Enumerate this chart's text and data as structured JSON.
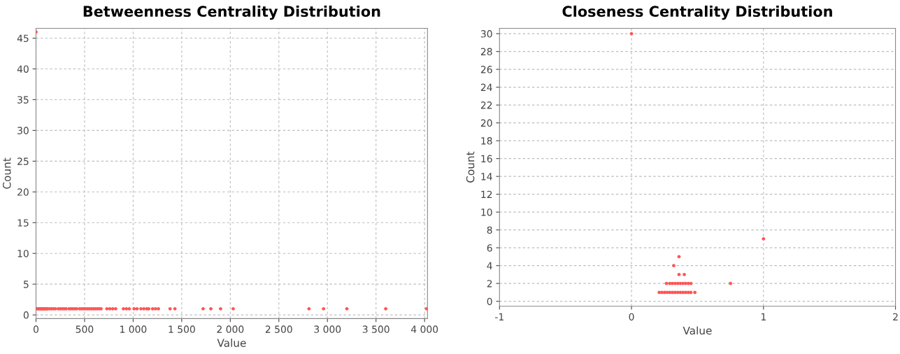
{
  "chart_data": [
    {
      "type": "scatter",
      "title": "Betweenness Centrality Distribution",
      "xlabel": "Value",
      "ylabel": "Count",
      "xlim": [
        0,
        4030
      ],
      "ylim": [
        -0.6,
        46.6
      ],
      "xticks": [
        0,
        500,
        {
          "value": 1000,
          "label": "1 000"
        },
        {
          "value": 1500,
          "label": "1 500"
        },
        {
          "value": 2000,
          "label": "2 000"
        },
        {
          "value": 2500,
          "label": "2 500"
        },
        {
          "value": 3000,
          "label": "3 000"
        },
        {
          "value": 3500,
          "label": "3 500"
        },
        {
          "value": 4000,
          "label": "4 000"
        }
      ],
      "yticks": [
        0,
        5,
        10,
        15,
        20,
        25,
        30,
        35,
        40,
        45
      ],
      "grid": true,
      "marker": "circle",
      "series": [
        {
          "color": "#ff5555",
          "x": [
            0,
            10,
            20,
            30,
            40,
            50,
            60,
            70,
            80,
            90,
            100,
            110,
            120,
            140,
            160,
            180,
            200,
            230,
            250,
            270,
            290,
            310,
            340,
            360,
            380,
            400,
            420,
            450,
            470,
            490,
            510,
            530,
            550,
            570,
            590,
            610,
            630,
            650,
            670,
            730,
            760,
            790,
            820,
            900,
            930,
            960,
            1010,
            1040,
            1080,
            1110,
            1140,
            1160,
            1200,
            1230,
            1260,
            1380,
            1430,
            1720,
            1800,
            1900,
            2030,
            2810,
            2960,
            3200,
            3600,
            4020
          ],
          "values": [
            46,
            1,
            1,
            1,
            1,
            1,
            1,
            1,
            1,
            1,
            1,
            1,
            1,
            1,
            1,
            1,
            1,
            1,
            1,
            1,
            1,
            1,
            1,
            1,
            1,
            1,
            1,
            1,
            1,
            1,
            1,
            1,
            1,
            1,
            1,
            1,
            1,
            1,
            1,
            1,
            1,
            1,
            1,
            1,
            1,
            1,
            1,
            1,
            1,
            1,
            1,
            1,
            1,
            1,
            1,
            1,
            1,
            1,
            1,
            1,
            1,
            1,
            1,
            1,
            1,
            1
          ]
        }
      ]
    },
    {
      "type": "scatter",
      "title": "Closeness Centrality Distribution",
      "xlabel": "Value",
      "ylabel": "Count",
      "xlim": [
        -1,
        2
      ],
      "ylim": [
        -0.55,
        30.6
      ],
      "xticks": [
        {
          "value": -1,
          "label": "-1"
        },
        0,
        1,
        2
      ],
      "yticks": [
        0,
        2,
        4,
        6,
        8,
        10,
        12,
        14,
        16,
        18,
        20,
        22,
        24,
        26,
        28,
        30
      ],
      "grid": true,
      "marker": "circle",
      "series": [
        {
          "color": "#ff5555",
          "x": [
            0,
            1,
            0.75,
            0.21,
            0.23,
            0.25,
            0.27,
            0.29,
            0.31,
            0.33,
            0.35,
            0.37,
            0.39,
            0.41,
            0.43,
            0.45,
            0.48,
            0.265,
            0.29,
            0.31,
            0.33,
            0.35,
            0.37,
            0.39,
            0.41,
            0.43,
            0.45,
            0.36,
            0.4,
            0.32,
            0.36
          ],
          "values": [
            30,
            7,
            2,
            1,
            1,
            1,
            1,
            1,
            1,
            1,
            1,
            1,
            1,
            1,
            1,
            1,
            1,
            2,
            2,
            2,
            2,
            2,
            2,
            2,
            2,
            2,
            2,
            3,
            3,
            4,
            5
          ]
        }
      ]
    }
  ]
}
